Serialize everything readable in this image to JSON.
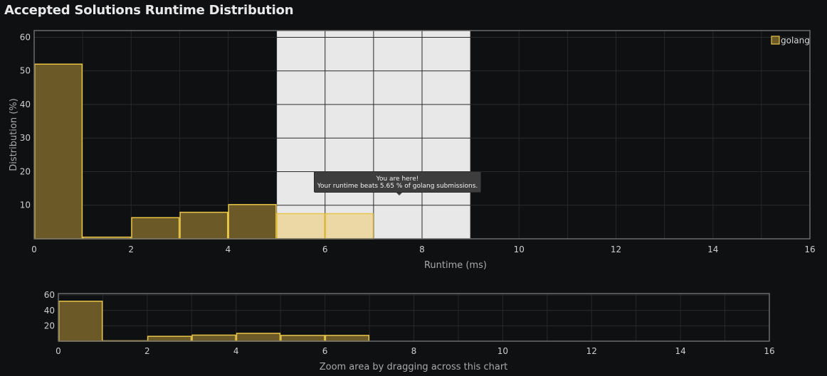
{
  "title": "Accepted Solutions Runtime Distribution",
  "tooltip": {
    "line1": "You are here!",
    "line2": "Your runtime beats 5.65 % of golang submissions."
  },
  "zoom_caption": "Zoom area by dragging across this chart",
  "colors": {
    "background": "#0f1012",
    "bar_fill": "#6b5a28",
    "bar_stroke": "#e8c547",
    "highlight_fill": "#ecd8a1",
    "highlight_stroke": "#e8c547",
    "highlight_band": "#e8e8e8",
    "grid": "#2e2e2e",
    "border": "#6b6b6b"
  },
  "chart_data": [
    {
      "name": "main",
      "type": "bar",
      "xlabel": "Runtime (ms)",
      "ylabel": "Distribution (%)",
      "xlim": [
        0,
        16
      ],
      "ylim": [
        0,
        62
      ],
      "xticks": [
        0,
        2,
        4,
        6,
        8,
        10,
        12,
        14,
        16
      ],
      "yticks": [
        10,
        20,
        30,
        40,
        50,
        60
      ],
      "grid": true,
      "legend": {
        "position": "top-right",
        "entries": [
          "golang"
        ]
      },
      "highlight_band": [
        5,
        9
      ],
      "series": [
        {
          "name": "golang",
          "bins": [
            {
              "x0": 0,
              "x1": 1,
              "value": 52.0,
              "highlight": false
            },
            {
              "x0": 1,
              "x1": 2,
              "value": 0.5,
              "highlight": false
            },
            {
              "x0": 2,
              "x1": 3,
              "value": 6.3,
              "highlight": false
            },
            {
              "x0": 3,
              "x1": 4,
              "value": 7.9,
              "highlight": false
            },
            {
              "x0": 4,
              "x1": 5,
              "value": 10.2,
              "highlight": false
            },
            {
              "x0": 5,
              "x1": 6,
              "value": 7.5,
              "highlight": true
            },
            {
              "x0": 6,
              "x1": 7,
              "value": 7.5,
              "highlight": true
            }
          ]
        }
      ]
    },
    {
      "name": "zoom-navigator",
      "type": "bar",
      "xlim": [
        0,
        16
      ],
      "ylim": [
        0,
        62
      ],
      "xticks": [
        0,
        2,
        4,
        6,
        8,
        10,
        12,
        14,
        16
      ],
      "yticks": [
        20,
        40,
        60
      ],
      "grid": true,
      "series": [
        {
          "name": "golang",
          "bins": [
            {
              "x0": 0,
              "x1": 1,
              "value": 52.0
            },
            {
              "x0": 1,
              "x1": 2,
              "value": 0.5
            },
            {
              "x0": 2,
              "x1": 3,
              "value": 6.3
            },
            {
              "x0": 3,
              "x1": 4,
              "value": 7.9
            },
            {
              "x0": 4,
              "x1": 5,
              "value": 10.2
            },
            {
              "x0": 5,
              "x1": 6,
              "value": 7.5
            },
            {
              "x0": 6,
              "x1": 7,
              "value": 7.5
            }
          ]
        }
      ]
    }
  ]
}
